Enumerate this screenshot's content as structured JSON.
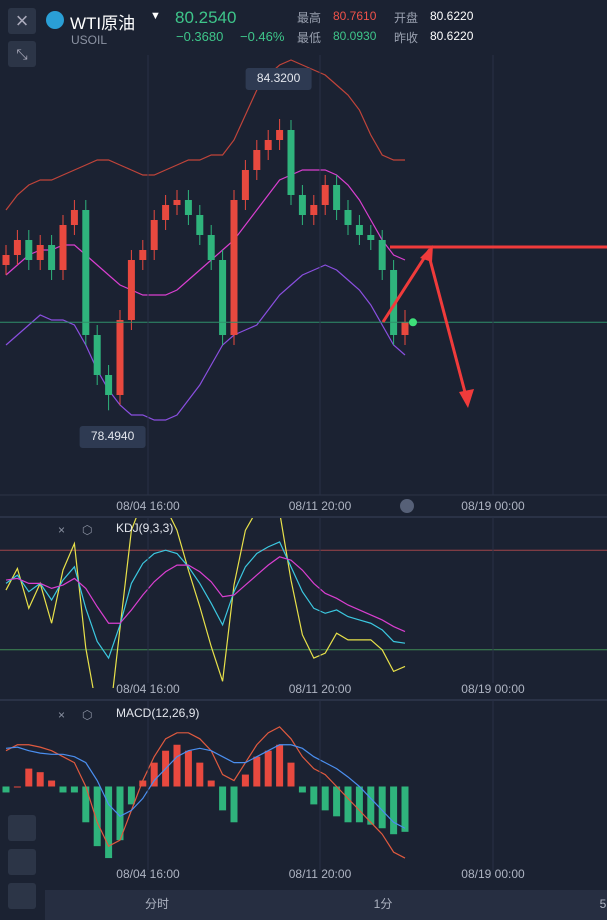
{
  "header": {
    "name": "WTI原油",
    "code": "USOIL",
    "price": "80.2540",
    "change": "−0.3680",
    "change_pct": "−0.46%",
    "high_label": "最高",
    "high": "80.7610",
    "low_label": "最低",
    "low": "80.0930",
    "open_label": "开盘",
    "open": "80.6220",
    "prev_label": "昨收",
    "prev": "80.6220"
  },
  "chart_data": {
    "type": "candlestick",
    "ylim": [
      78.2,
      85.6
    ],
    "current_price": 80.254,
    "max_label": "84.3200",
    "min_label": "78.4940",
    "time_labels": [
      "08/04 16:00",
      "08/11 20:00",
      "08/19 00:00"
    ],
    "open": [
      81.4,
      81.6,
      81.9,
      81.5,
      81.8,
      81.3,
      82.2,
      82.5,
      80.0,
      79.2,
      78.8,
      80.3,
      81.5,
      81.7,
      82.3,
      82.6,
      82.7,
      82.4,
      82.0,
      81.5,
      80.0,
      82.7,
      83.3,
      83.7,
      83.9,
      84.1,
      82.8,
      82.4,
      82.6,
      83.0,
      82.5,
      82.2,
      82.0,
      81.9,
      81.3,
      80.0
    ],
    "high": [
      81.8,
      82.1,
      82.1,
      82.0,
      82.0,
      82.4,
      82.7,
      82.7,
      80.2,
      79.4,
      80.5,
      81.7,
      81.9,
      82.5,
      82.8,
      82.9,
      82.9,
      82.6,
      82.2,
      81.7,
      82.9,
      83.5,
      83.9,
      84.1,
      84.32,
      84.3,
      83.0,
      82.8,
      83.2,
      83.2,
      82.7,
      82.4,
      82.2,
      82.1,
      81.5,
      80.5
    ],
    "low": [
      81.2,
      81.4,
      81.3,
      81.3,
      81.1,
      81.1,
      82.0,
      79.8,
      79.0,
      78.494,
      78.6,
      80.1,
      81.3,
      81.5,
      82.1,
      82.4,
      82.2,
      81.8,
      81.3,
      79.8,
      79.8,
      82.5,
      83.1,
      83.5,
      83.7,
      82.6,
      82.2,
      82.2,
      82.4,
      82.3,
      82.0,
      81.8,
      81.7,
      81.1,
      79.8,
      79.8
    ],
    "close": [
      81.6,
      81.9,
      81.5,
      81.8,
      81.3,
      82.2,
      82.5,
      80.0,
      79.2,
      78.8,
      80.3,
      81.5,
      81.7,
      82.3,
      82.6,
      82.7,
      82.4,
      82.0,
      81.5,
      80.0,
      82.7,
      83.3,
      83.7,
      83.9,
      84.1,
      82.8,
      82.4,
      82.6,
      83.0,
      82.5,
      82.2,
      82.0,
      81.9,
      81.3,
      80.0,
      80.254
    ],
    "upper": [
      82.5,
      82.8,
      83.0,
      83.1,
      83.1,
      83.2,
      83.3,
      83.4,
      83.5,
      83.5,
      83.4,
      83.3,
      83.2,
      83.2,
      83.3,
      83.4,
      83.5,
      83.5,
      83.6,
      83.6,
      83.9,
      84.4,
      84.9,
      85.2,
      85.4,
      85.5,
      85.4,
      85.3,
      85.2,
      85.0,
      84.8,
      84.5,
      84.0,
      83.6,
      83.5,
      83.5
    ],
    "middle": [
      81.2,
      81.4,
      81.6,
      81.7,
      81.7,
      81.8,
      81.8,
      81.6,
      81.4,
      81.2,
      81.0,
      80.9,
      80.8,
      80.8,
      80.8,
      80.9,
      81.1,
      81.3,
      81.5,
      81.7,
      81.9,
      82.2,
      82.5,
      82.8,
      83.1,
      83.2,
      83.3,
      83.3,
      83.3,
      83.2,
      83.0,
      82.7,
      82.3,
      81.9,
      81.6,
      81.5
    ],
    "lower": [
      79.8,
      80.0,
      80.2,
      80.4,
      80.3,
      80.3,
      80.2,
      79.8,
      79.3,
      78.9,
      78.6,
      78.4,
      78.4,
      78.3,
      78.3,
      78.4,
      78.7,
      79.0,
      79.4,
      79.8,
      80.0,
      80.1,
      80.2,
      80.5,
      80.8,
      81.0,
      81.2,
      81.3,
      81.4,
      81.3,
      81.1,
      80.9,
      80.6,
      80.2,
      79.8,
      79.6
    ],
    "kdj": {
      "title": "KDJ(9,3,3)",
      "ylim": [
        0,
        100
      ],
      "levels": [
        80,
        20
      ],
      "k": [
        60,
        65,
        55,
        60,
        50,
        62,
        70,
        45,
        25,
        15,
        35,
        60,
        72,
        78,
        80,
        78,
        70,
        60,
        48,
        35,
        55,
        70,
        78,
        82,
        85,
        70,
        55,
        45,
        42,
        44,
        40,
        38,
        36,
        32,
        25,
        24
      ],
      "d": [
        62,
        63,
        60,
        60,
        57,
        59,
        63,
        57,
        46,
        36,
        36,
        44,
        53,
        61,
        67,
        71,
        71,
        67,
        61,
        52,
        53,
        59,
        65,
        71,
        76,
        74,
        68,
        60,
        54,
        51,
        47,
        44,
        41,
        38,
        34,
        31
      ],
      "j": [
        56,
        69,
        45,
        60,
        36,
        68,
        84,
        21,
        -17,
        -27,
        33,
        92,
        110,
        112,
        106,
        92,
        68,
        46,
        22,
        1,
        59,
        92,
        104,
        104,
        103,
        62,
        29,
        15,
        18,
        30,
        26,
        26,
        26,
        20,
        7,
        10
      ]
    },
    "macd": {
      "title": "MACD(12,26,9)",
      "ylim": [
        -0.7,
        0.7
      ],
      "hist": [
        -0.05,
        0,
        0.15,
        0.12,
        0.05,
        -0.05,
        -0.05,
        -0.3,
        -0.5,
        -0.6,
        -0.45,
        -0.15,
        0.05,
        0.2,
        0.3,
        0.35,
        0.3,
        0.2,
        0.05,
        -0.2,
        -0.3,
        0.1,
        0.25,
        0.3,
        0.35,
        0.2,
        -0.05,
        -0.15,
        -0.2,
        -0.25,
        -0.3,
        -0.3,
        -0.32,
        -0.35,
        -0.4,
        -0.38
      ],
      "dif": [
        0.3,
        0.35,
        0.35,
        0.33,
        0.3,
        0.25,
        0.2,
        0.0,
        -0.3,
        -0.5,
        -0.45,
        -0.2,
        0.05,
        0.25,
        0.4,
        0.45,
        0.45,
        0.4,
        0.3,
        0.1,
        0.05,
        0.2,
        0.35,
        0.45,
        0.5,
        0.4,
        0.25,
        0.15,
        0.1,
        0.0,
        -0.1,
        -0.2,
        -0.3,
        -0.4,
        -0.55,
        -0.6
      ],
      "dea": [
        0.32,
        0.33,
        0.3,
        0.28,
        0.27,
        0.27,
        0.25,
        0.2,
        0.05,
        -0.15,
        -0.25,
        -0.2,
        -0.1,
        0.05,
        0.15,
        0.25,
        0.3,
        0.32,
        0.3,
        0.25,
        0.2,
        0.2,
        0.25,
        0.3,
        0.35,
        0.35,
        0.32,
        0.25,
        0.2,
        0.15,
        0.08,
        0,
        -0.1,
        -0.2,
        -0.3,
        -0.35
      ]
    }
  },
  "footer": {
    "tabs": [
      "分时",
      "1分",
      "5"
    ]
  }
}
